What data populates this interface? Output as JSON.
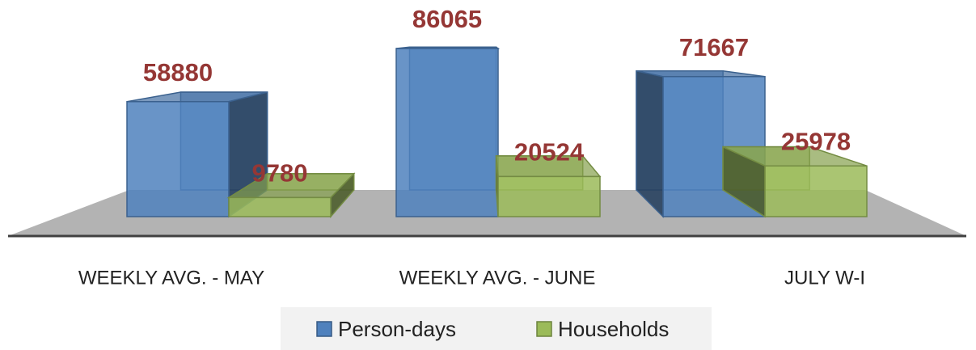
{
  "chart_data": {
    "type": "bar3d",
    "categories": [
      "WEEKLY AVG. - MAY",
      "WEEKLY AVG. - JUNE",
      "JULY W-I"
    ],
    "series": [
      {
        "name": "Person-days",
        "color": "#4f81bd",
        "values": [
          58880,
          86065,
          71667
        ]
      },
      {
        "name": "Households",
        "color": "#9bbb59",
        "values": [
          9780,
          20524,
          25978
        ]
      }
    ],
    "legend": "bottom"
  }
}
